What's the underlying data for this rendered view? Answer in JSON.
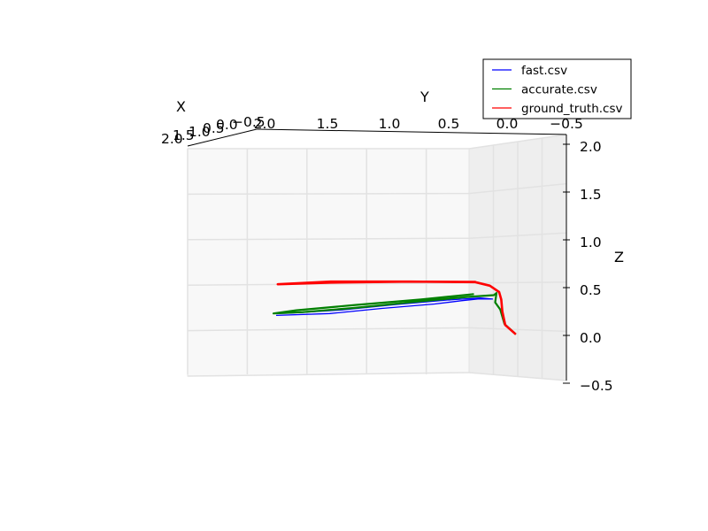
{
  "chart_data": {
    "type": "line",
    "projection": "3d",
    "title": "",
    "xlabel": "X",
    "ylabel": "Y",
    "zlabel": "Z",
    "xlim": [
      -0.5,
      2.0
    ],
    "ylim": [
      -0.5,
      2.0
    ],
    "zlim": [
      -0.5,
      2.0
    ],
    "grid": true,
    "legend_position": "top-right",
    "x_ticks": [
      "2.0",
      "1.5",
      "1.0",
      "0.5",
      "0.0",
      "−0.5"
    ],
    "y_ticks": [
      "2.0",
      "1.5",
      "1.0",
      "0.5",
      "0.0",
      "−0.5"
    ],
    "z_ticks": [
      "2.0",
      "1.5",
      "1.0",
      "0.5",
      "0.0",
      "−0.5"
    ],
    "series": [
      {
        "name": "fast.csv",
        "color": "#0000ff",
        "points": [
          [
            0.5,
            1.6,
            0.23
          ],
          [
            0.52,
            1.2,
            0.24
          ],
          [
            0.48,
            0.8,
            0.29
          ],
          [
            0.47,
            0.4,
            0.33
          ],
          [
            0.47,
            0.2,
            0.36
          ],
          [
            0.44,
            0.06,
            0.38
          ],
          [
            0.4,
            -0.05,
            0.38
          ],
          [
            0.44,
            0.05,
            0.39
          ],
          [
            0.46,
            0.3,
            0.37
          ],
          [
            0.46,
            0.7,
            0.33
          ],
          [
            0.48,
            1.1,
            0.28
          ],
          [
            0.52,
            1.5,
            0.25
          ],
          [
            0.5,
            1.62,
            0.25
          ]
        ]
      },
      {
        "name": "accurate.csv",
        "color": "#008000",
        "points": [
          [
            -0.42,
            -0.39,
            0.08
          ],
          [
            -0.3,
            -0.28,
            0.18
          ],
          [
            -0.16,
            -0.22,
            0.32
          ],
          [
            0.0,
            -0.15,
            0.38
          ],
          [
            0.2,
            -0.12,
            0.46
          ],
          [
            0.4,
            -0.06,
            0.42
          ],
          [
            0.46,
            0.15,
            0.4
          ],
          [
            0.46,
            0.6,
            0.35
          ],
          [
            0.47,
            1.0,
            0.3
          ],
          [
            0.5,
            1.4,
            0.26
          ],
          [
            0.5,
            1.62,
            0.25
          ],
          [
            0.51,
            1.45,
            0.28
          ],
          [
            0.48,
            1.0,
            0.33
          ],
          [
            0.46,
            0.5,
            0.38
          ],
          [
            0.45,
            0.1,
            0.43
          ]
        ]
      },
      {
        "name": "ground_truth.csv",
        "color": "#ff0000",
        "points": [
          [
            -0.42,
            -0.39,
            0.08
          ],
          [
            -0.32,
            -0.29,
            0.17
          ],
          [
            -0.18,
            -0.24,
            0.3
          ],
          [
            -0.02,
            -0.2,
            0.41
          ],
          [
            0.2,
            -0.14,
            0.47
          ],
          [
            0.4,
            -0.03,
            0.52
          ],
          [
            0.5,
            0.1,
            0.55
          ],
          [
            0.55,
            0.6,
            0.56
          ],
          [
            0.56,
            1.2,
            0.57
          ],
          [
            0.56,
            1.6,
            0.55
          ],
          [
            0.56,
            1.2,
            0.56
          ],
          [
            0.55,
            0.6,
            0.56
          ],
          [
            0.52,
            0.1,
            0.55
          ]
        ]
      }
    ]
  }
}
